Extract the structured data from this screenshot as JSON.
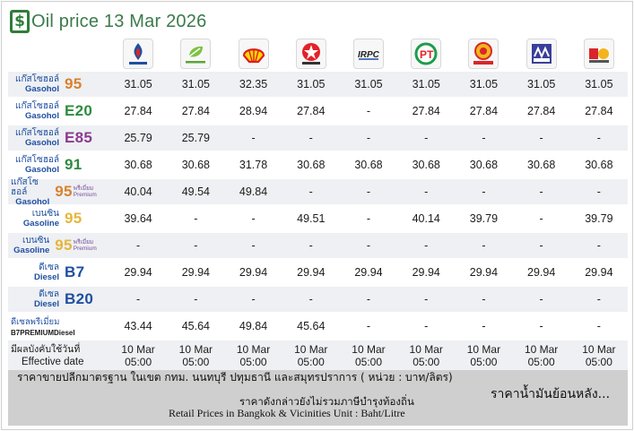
{
  "title": "Oil price 13 Mar 2026",
  "brands": [
    {
      "name": "PTT",
      "icon": "ptt-logo",
      "caption": "ptt station"
    },
    {
      "name": "Bangchak",
      "icon": "bangchak-logo",
      "caption": "bangchak"
    },
    {
      "name": "Shell",
      "icon": "shell-logo",
      "caption": ""
    },
    {
      "name": "Caltex",
      "icon": "caltex-logo",
      "caption": "CALTEX"
    },
    {
      "name": "IRPC",
      "icon": "irpc-logo",
      "caption": "IRPC"
    },
    {
      "name": "PT",
      "icon": "pt-logo",
      "caption": "PT"
    },
    {
      "name": "Susco",
      "icon": "susco-logo",
      "caption": "SUSCO"
    },
    {
      "name": "Pure",
      "icon": "pure-logo",
      "caption": "PURE"
    },
    {
      "name": "Other",
      "icon": "other-station-logo",
      "caption": ""
    }
  ],
  "fuels": [
    {
      "thai": "แก๊สโซฮอล์",
      "eng": "Gasohol",
      "code": "95",
      "premium": "",
      "color": "#d9812e",
      "prices": [
        "31.05",
        "31.05",
        "32.35",
        "31.05",
        "31.05",
        "31.05",
        "31.05",
        "31.05",
        "31.05"
      ]
    },
    {
      "thai": "แก๊สโซฮอล์",
      "eng": "Gasohol",
      "code": "E20",
      "premium": "",
      "color": "#2e8b3f",
      "prices": [
        "27.84",
        "27.84",
        "28.94",
        "27.84",
        "-",
        "27.84",
        "27.84",
        "27.84",
        "27.84"
      ]
    },
    {
      "thai": "แก๊สโซฮอล์",
      "eng": "Gasohol",
      "code": "E85",
      "premium": "",
      "color": "#8a3a8f",
      "prices": [
        "25.79",
        "25.79",
        "-",
        "-",
        "-",
        "-",
        "-",
        "-",
        "-"
      ]
    },
    {
      "thai": "แก๊สโซฮอล์",
      "eng": "Gasohol",
      "code": "91",
      "premium": "",
      "color": "#2e8b3f",
      "prices": [
        "30.68",
        "30.68",
        "31.78",
        "30.68",
        "30.68",
        "30.68",
        "30.68",
        "30.68",
        "30.68"
      ]
    },
    {
      "thai": "แก๊สโซฮอล์",
      "eng": "Gasohol",
      "code": "95",
      "premium": "พรีเมี่ยม Premium",
      "color": "#d9812e",
      "prices": [
        "40.04",
        "49.54",
        "49.84",
        "-",
        "-",
        "-",
        "-",
        "-",
        "-"
      ]
    },
    {
      "thai": "เบนซิน",
      "eng": "Gasoline",
      "code": "95",
      "premium": "",
      "color": "#e5b63a",
      "prices": [
        "39.64",
        "-",
        "-",
        "49.51",
        "-",
        "40.14",
        "39.79",
        "-",
        "39.79"
      ]
    },
    {
      "thai": "เบนซิน",
      "eng": "Gasoline",
      "code": "95",
      "premium": "พรีเมี่ยม Premium",
      "color": "#e5b63a",
      "prices": [
        "-",
        "-",
        "-",
        "-",
        "-",
        "-",
        "-",
        "-",
        "-"
      ]
    },
    {
      "thai": "ดีเซล",
      "eng": "Diesel",
      "code": "B7",
      "premium": "",
      "color": "#1f4fa0",
      "prices": [
        "29.94",
        "29.94",
        "29.94",
        "29.94",
        "29.94",
        "29.94",
        "29.94",
        "29.94",
        "29.94"
      ]
    },
    {
      "thai": "ดีเซล",
      "eng": "Diesel",
      "code": "B20",
      "premium": "",
      "color": "#1f4fa0",
      "prices": [
        "-",
        "-",
        "-",
        "-",
        "-",
        "-",
        "-",
        "-",
        "-"
      ]
    },
    {
      "thai": "ดีเซลพรีเมี่ยม",
      "eng": "B7PREMIUMDiesel",
      "code": "",
      "premium": "",
      "color": "#1f4fa0",
      "prices": [
        "43.44",
        "45.64",
        "49.84",
        "45.64",
        "-",
        "-",
        "-",
        "-",
        "-"
      ]
    }
  ],
  "effective": {
    "label_thai": "มีผลบังคับใช้วันที่",
    "label_eng": "Effective date",
    "dates": [
      "10 Mar",
      "10 Mar",
      "10 Mar",
      "10 Mar",
      "10 Mar",
      "10 Mar",
      "10 Mar",
      "10 Mar",
      "10 Mar"
    ],
    "times": [
      "05:00",
      "05:00",
      "05:00",
      "05:00",
      "05:00",
      "05:00",
      "05:00",
      "05:00",
      "05:00"
    ]
  },
  "footer": {
    "line1": "ราคาขายปลีกมาตรฐาน ในเขต กทม. นนทบุรี ปทุมธานี และสมุทรปราการ ( หน่วย : บาท/ลิตร)",
    "line2": "ราคาดังกล่าวยังไม่รวมภาษีบำรุงท้องถิ่น",
    "line3": "Retail Prices in Bangkok & Vicinities Unit : Baht/Litre",
    "history_link": "ราคาน้ำมันย้อนหลัง..."
  },
  "colors": {
    "title": "#3c7a4a",
    "row_alt": "#eef0f3",
    "footer_bg": "#cfcfcf",
    "thai_label": "#1f4fa0"
  }
}
